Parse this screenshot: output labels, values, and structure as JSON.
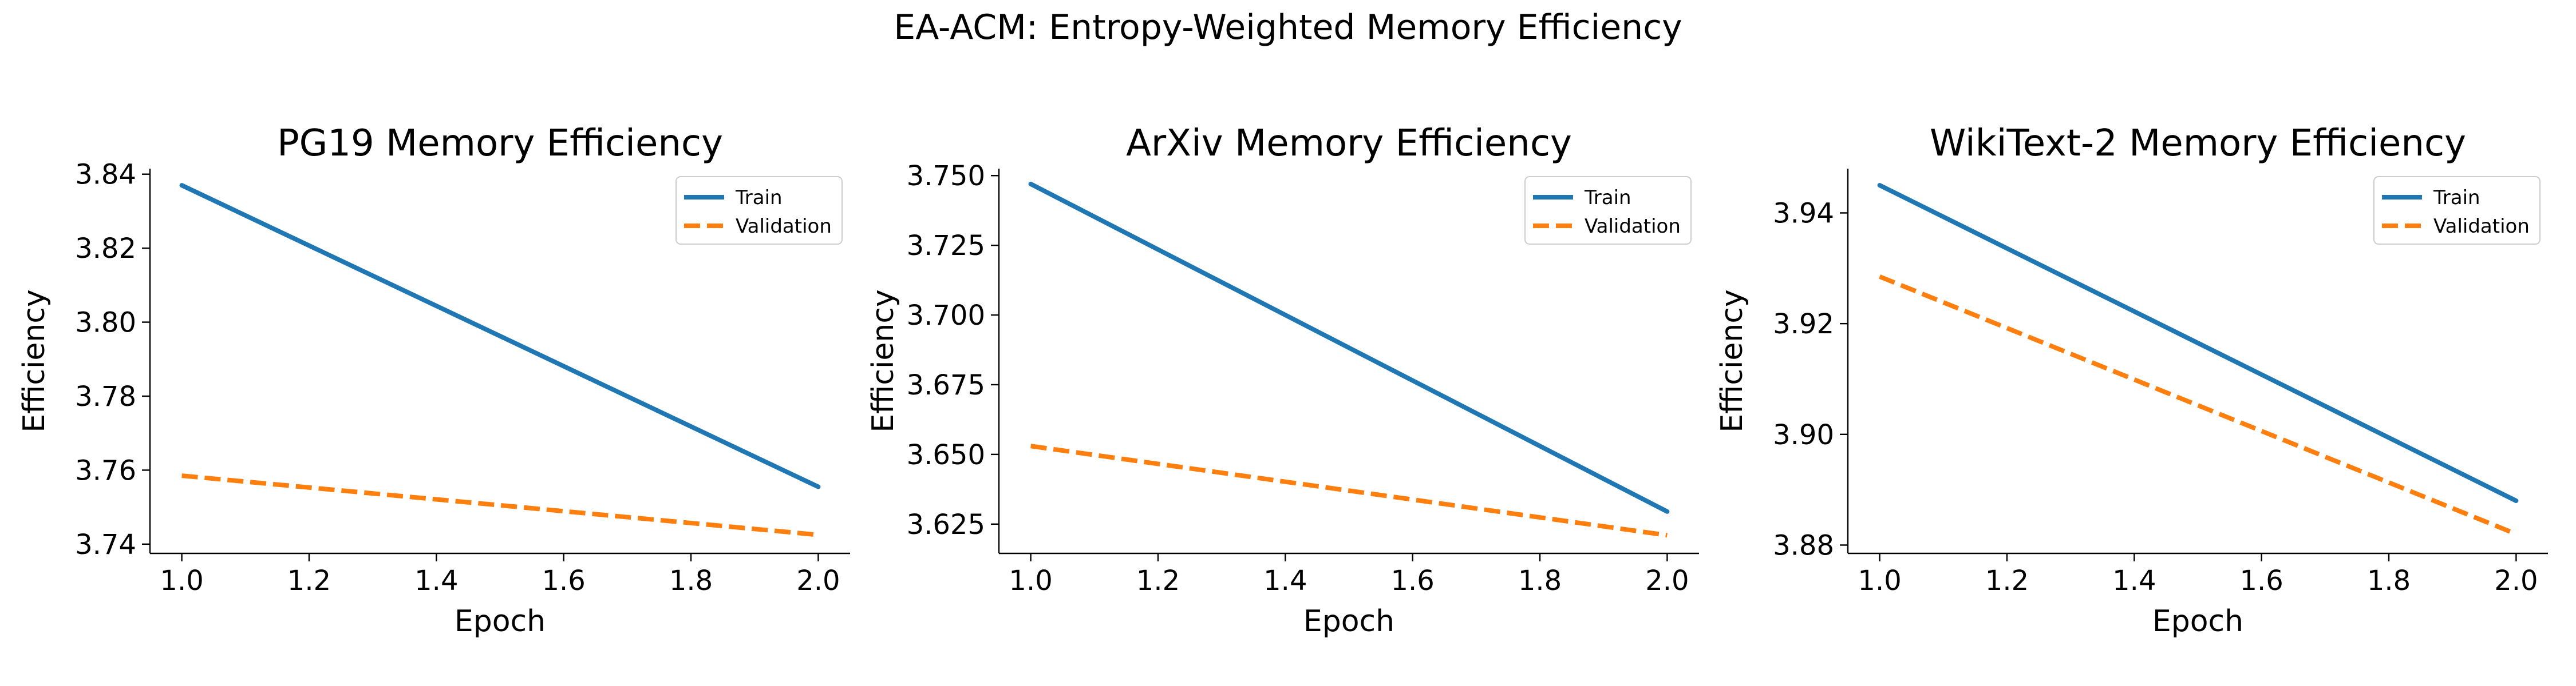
{
  "figure": {
    "title": "EA-ACM: Entropy-Weighted Memory Efficiency"
  },
  "chart_data": [
    {
      "type": "line",
      "title": "PG19 Memory Efficiency",
      "xlabel": "Epoch",
      "ylabel": "Efficiency",
      "x": [
        1.0,
        2.0
      ],
      "xlim": [
        0.95,
        2.05
      ],
      "ylim": [
        3.7375,
        3.8415
      ],
      "xticks": [
        "1.0",
        "1.2",
        "1.4",
        "1.6",
        "1.8",
        "2.0"
      ],
      "yticks": [
        "3.74",
        "3.76",
        "3.78",
        "3.80",
        "3.82",
        "3.84"
      ],
      "grid": false,
      "legend": "top-right",
      "series": [
        {
          "name": "Train",
          "values": [
            3.837,
            3.7555
          ],
          "color": "#1f77b4",
          "style": "solid"
        },
        {
          "name": "Validation",
          "values": [
            3.7585,
            3.7425
          ],
          "color": "#ff7f0e",
          "style": "dashed"
        }
      ]
    },
    {
      "type": "line",
      "title": "ArXiv Memory Efficiency",
      "xlabel": "Epoch",
      "ylabel": "Efficiency",
      "x": [
        1.0,
        2.0
      ],
      "xlim": [
        0.95,
        2.05
      ],
      "ylim": [
        3.6145,
        3.7525
      ],
      "xticks": [
        "1.0",
        "1.2",
        "1.4",
        "1.6",
        "1.8",
        "2.0"
      ],
      "yticks": [
        "3.625",
        "3.650",
        "3.675",
        "3.700",
        "3.725",
        "3.750"
      ],
      "grid": false,
      "legend": "top-right",
      "series": [
        {
          "name": "Train",
          "values": [
            3.747,
            3.6295
          ],
          "color": "#1f77b4",
          "style": "solid"
        },
        {
          "name": "Validation",
          "values": [
            3.653,
            3.621
          ],
          "color": "#ff7f0e",
          "style": "dashed"
        }
      ]
    },
    {
      "type": "line",
      "title": "WikiText-2 Memory Efficiency",
      "xlabel": "Epoch",
      "ylabel": "Efficiency",
      "x": [
        1.0,
        2.0
      ],
      "xlim": [
        0.95,
        2.05
      ],
      "ylim": [
        3.8785,
        3.948
      ],
      "xticks": [
        "1.0",
        "1.2",
        "1.4",
        "1.6",
        "1.8",
        "2.0"
      ],
      "yticks": [
        "3.88",
        "3.90",
        "3.92",
        "3.94"
      ],
      "grid": false,
      "legend": "top-right",
      "series": [
        {
          "name": "Train",
          "values": [
            3.945,
            3.888
          ],
          "color": "#1f77b4",
          "style": "solid"
        },
        {
          "name": "Validation",
          "values": [
            3.9285,
            3.882
          ],
          "color": "#ff7f0e",
          "style": "dashed"
        }
      ]
    }
  ]
}
